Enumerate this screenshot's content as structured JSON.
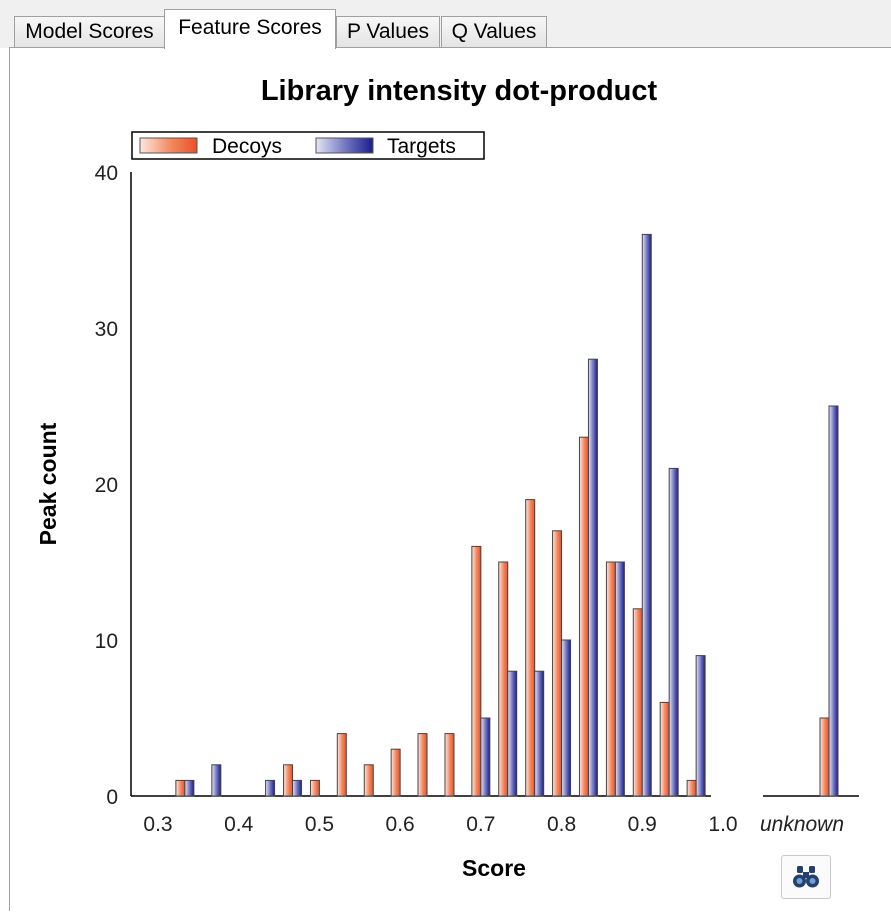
{
  "tabs": [
    {
      "label": "Model Scores",
      "active": false
    },
    {
      "label": "Feature Scores",
      "active": true
    },
    {
      "label": "P Values",
      "active": false
    },
    {
      "label": "Q Values",
      "active": false
    }
  ],
  "chart_data": {
    "type": "bar",
    "title": "Library intensity dot-product",
    "xlabel": "Score",
    "ylabel": "Peak count",
    "ylim": [
      0,
      40
    ],
    "yticks": [
      "0",
      "10",
      "20",
      "30",
      "40"
    ],
    "xticks": [
      "0.3",
      "0.4",
      "0.5",
      "0.6",
      "0.7",
      "0.8",
      "0.9",
      "1.0"
    ],
    "xlim": [
      0.3,
      1.0
    ],
    "bin_width": 0.0333,
    "grid": false,
    "legend_position": "top-left",
    "x": [
      0.3333,
      0.3667,
      0.4,
      0.4333,
      0.4667,
      0.5,
      0.5333,
      0.5667,
      0.6,
      0.6333,
      0.6667,
      0.7,
      0.7333,
      0.7667,
      0.8,
      0.8333,
      0.8667,
      0.9,
      0.9333,
      0.9667,
      1.0
    ],
    "series": [
      {
        "name": "Decoys",
        "color": "#e8502a",
        "values": [
          1,
          0,
          0,
          0,
          2,
          1,
          4,
          2,
          3,
          4,
          4,
          16,
          15,
          19,
          17,
          23,
          15,
          12,
          6,
          1,
          0
        ]
      },
      {
        "name": "Targets",
        "color": "#1a1d8c",
        "values": [
          1,
          2,
          0,
          1,
          1,
          0,
          0,
          0,
          0,
          0,
          0,
          5,
          8,
          8,
          10,
          28,
          15,
          36,
          21,
          9,
          0
        ]
      }
    ],
    "unknown": {
      "label": "unknown",
      "decoys": 5,
      "targets": 25
    }
  },
  "icons": {
    "find": "binoculars-icon"
  }
}
